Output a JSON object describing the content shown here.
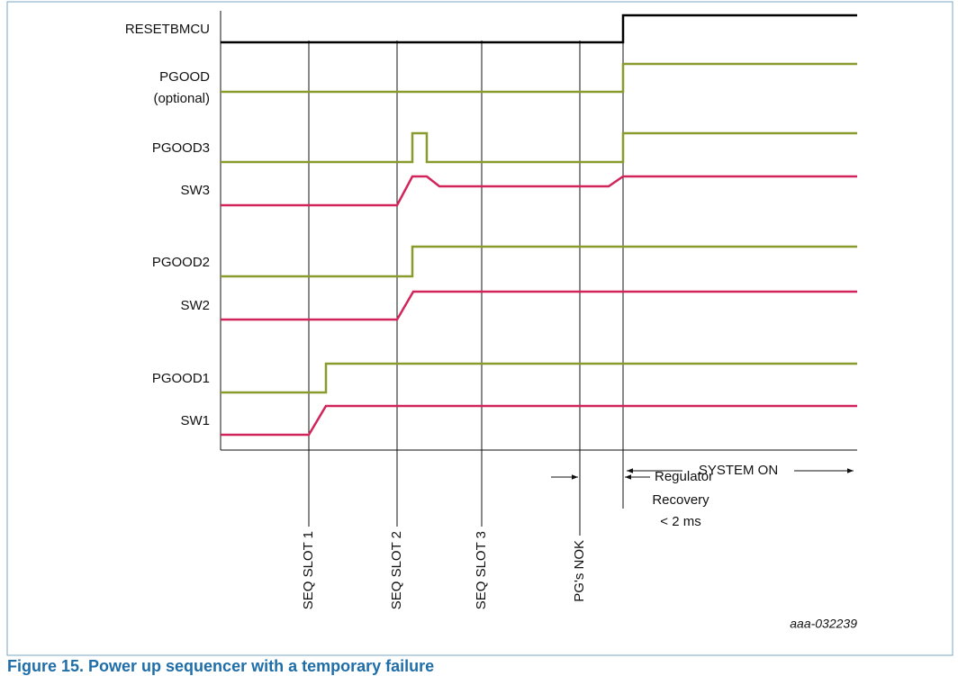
{
  "signals": [
    {
      "label": "RESETBMCU"
    },
    {
      "label": "PGOOD",
      "sublabel": "(optional)"
    },
    {
      "label": "PGOOD3"
    },
    {
      "label": "SW3"
    },
    {
      "label": "PGOOD2"
    },
    {
      "label": "SW2"
    },
    {
      "label": "PGOOD1"
    },
    {
      "label": "SW1"
    }
  ],
  "markers": [
    "SEQ SLOT 1",
    "SEQ SLOT 2",
    "SEQ SLOT 3",
    "PG's NOK"
  ],
  "annotations": {
    "system_on": "SYSTEM ON",
    "recovery": [
      "Regulator",
      "Recovery",
      "< 2 ms"
    ]
  },
  "figure_id": "aaa-032239",
  "caption": "Figure 15. Power up sequencer with a temporary failure"
}
